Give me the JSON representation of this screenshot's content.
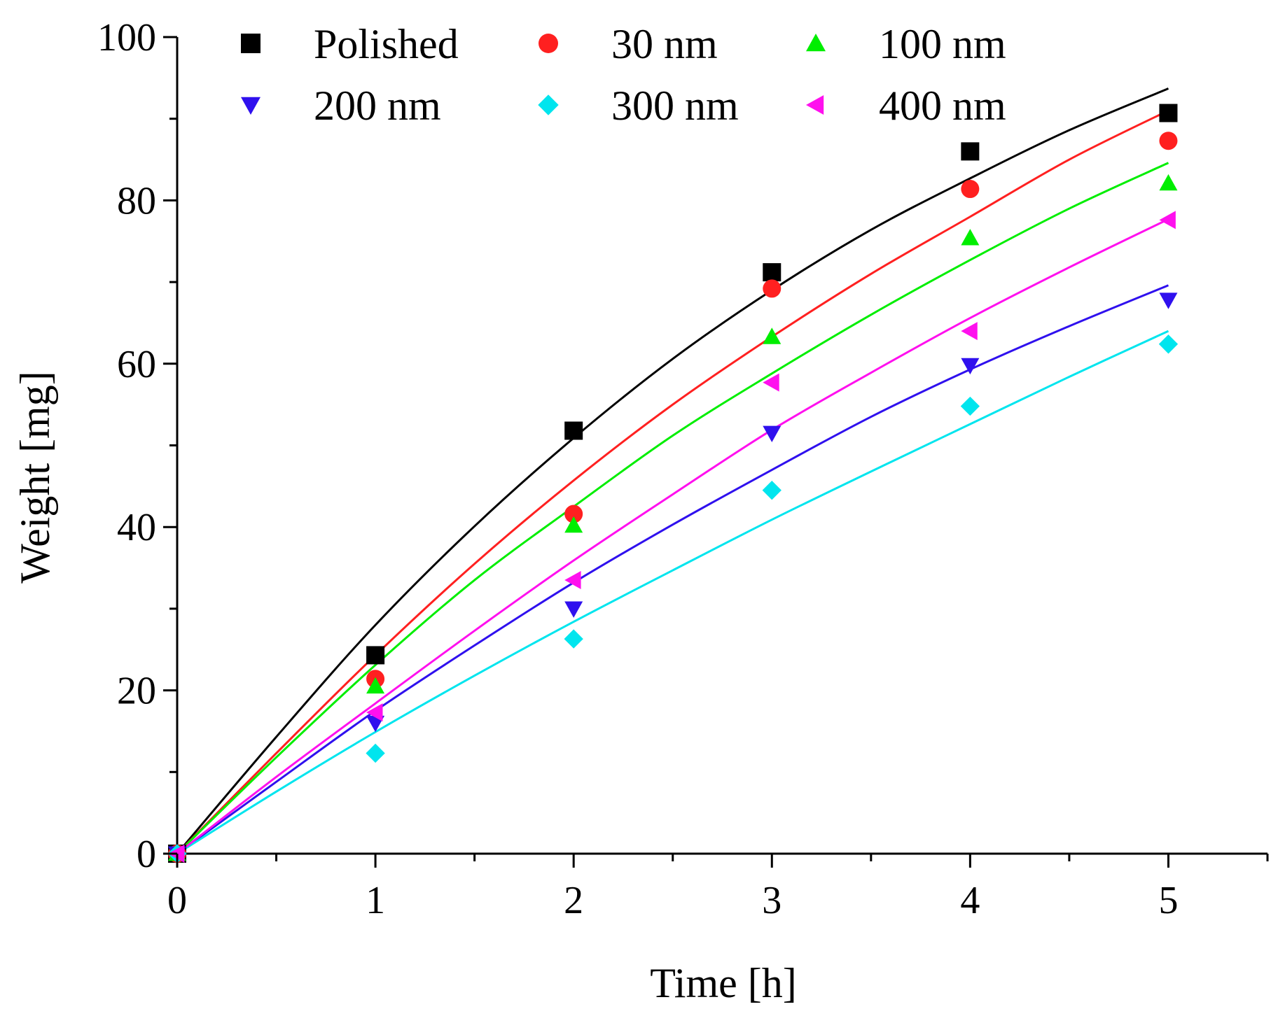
{
  "chart_data": {
    "type": "scatter",
    "xlabel": "Time [h]",
    "ylabel": "Weight [mg]",
    "xlim": [
      0,
      5.5
    ],
    "ylim": [
      0,
      100
    ],
    "x_ticks": [
      "0",
      "1",
      "2",
      "3",
      "4",
      "5"
    ],
    "y_ticks": [
      "0",
      "20",
      "40",
      "60",
      "80",
      "100"
    ],
    "grid": false,
    "legend_placement": "top",
    "series": [
      {
        "name": "Polished",
        "color": "#000000",
        "marker": "square",
        "x": [
          0,
          1,
          2,
          3,
          4,
          5
        ],
        "y": [
          0,
          24.3,
          51.8,
          71.2,
          86.0,
          90.7
        ],
        "fit": {
          "x": [
            0,
            0.5,
            1,
            1.5,
            2,
            2.5,
            3,
            3.5,
            4,
            4.5,
            5
          ],
          "y": [
            0,
            14.3,
            28.0,
            40.1,
            50.9,
            60.6,
            69.0,
            76.4,
            82.7,
            88.6,
            93.7
          ]
        }
      },
      {
        "name": "30 nm",
        "color": "#ff2020",
        "marker": "circle",
        "x": [
          0,
          1,
          2,
          3,
          4,
          5
        ],
        "y": [
          0,
          21.4,
          41.6,
          69.2,
          81.4,
          87.3
        ],
        "fit": {
          "x": [
            0,
            0.5,
            1,
            1.5,
            2,
            2.5,
            3,
            3.5,
            4,
            4.5,
            5
          ],
          "y": [
            0,
            12.3,
            24.3,
            35.5,
            45.7,
            55.0,
            63.3,
            71.0,
            78.0,
            85.0,
            91.0
          ]
        }
      },
      {
        "name": "100 nm",
        "color": "#00ee00",
        "marker": "triangle-up",
        "x": [
          0,
          1,
          2,
          3,
          4,
          5
        ],
        "y": [
          0,
          20.5,
          40.2,
          63.3,
          75.4,
          82.1
        ],
        "fit": {
          "x": [
            0,
            0.5,
            1,
            1.5,
            2,
            2.5,
            3,
            3.5,
            4,
            4.5,
            5
          ],
          "y": [
            0,
            11.8,
            23.1,
            33.5,
            42.5,
            51.2,
            58.8,
            66.0,
            72.7,
            79.0,
            84.6
          ]
        }
      },
      {
        "name": "200 nm",
        "color": "#2f10ee",
        "marker": "triangle-down",
        "x": [
          0,
          1,
          2,
          3,
          4,
          5
        ],
        "y": [
          0,
          16.0,
          30.0,
          51.5,
          59.8,
          67.8
        ],
        "fit": {
          "x": [
            0,
            0.5,
            1,
            1.5,
            2,
            2.5,
            3,
            3.5,
            4,
            4.5,
            5
          ],
          "y": [
            0,
            8.8,
            17.5,
            25.5,
            33.2,
            40.3,
            47.0,
            53.5,
            59.3,
            64.6,
            69.6
          ]
        }
      },
      {
        "name": "300 nm",
        "color": "#00e5ee",
        "marker": "diamond",
        "x": [
          0,
          1,
          2,
          3,
          4,
          5
        ],
        "y": [
          0,
          12.3,
          26.3,
          44.5,
          54.8,
          62.4
        ],
        "fit": {
          "x": [
            0,
            0.5,
            1,
            1.5,
            2,
            2.5,
            3,
            3.5,
            4,
            4.5,
            5
          ],
          "y": [
            0,
            7.6,
            14.9,
            21.8,
            28.4,
            34.7,
            40.9,
            46.8,
            52.6,
            58.4,
            64.0
          ]
        }
      },
      {
        "name": "400 nm",
        "color": "#ff10ee",
        "marker": "triangle-left",
        "x": [
          0,
          1,
          2,
          3,
          4,
          5
        ],
        "y": [
          0,
          17.3,
          33.5,
          57.7,
          64.0,
          77.6
        ],
        "fit": {
          "x": [
            0,
            0.5,
            1,
            1.5,
            2,
            2.5,
            3,
            3.5,
            4,
            4.5,
            5
          ],
          "y": [
            0,
            9.4,
            18.4,
            27.3,
            35.9,
            44.0,
            51.9,
            58.9,
            65.6,
            71.8,
            77.7
          ]
        }
      }
    ]
  }
}
